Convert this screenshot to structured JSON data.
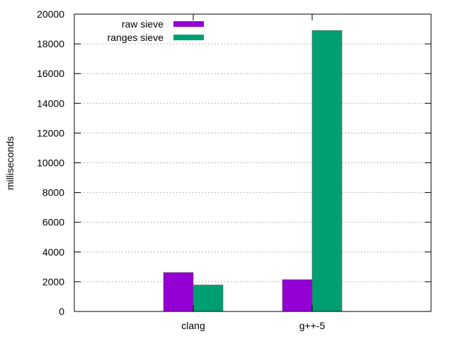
{
  "chart_data": {
    "type": "bar",
    "categories": [
      "clang",
      "g++-5"
    ],
    "series": [
      {
        "name": "raw sieve",
        "values": [
          2620,
          2140
        ],
        "color": "#9400d3"
      },
      {
        "name": "ranges sieve",
        "values": [
          1780,
          18900
        ],
        "color": "#009e73"
      }
    ],
    "ylabel": "milliseconds",
    "ylim": [
      0,
      20000
    ],
    "yticks": [
      0,
      2000,
      4000,
      6000,
      8000,
      10000,
      12000,
      14000,
      16000,
      18000,
      20000
    ],
    "xlim": [
      -1.5,
      1.5
    ],
    "grid": true,
    "legend_position": "top-left"
  }
}
